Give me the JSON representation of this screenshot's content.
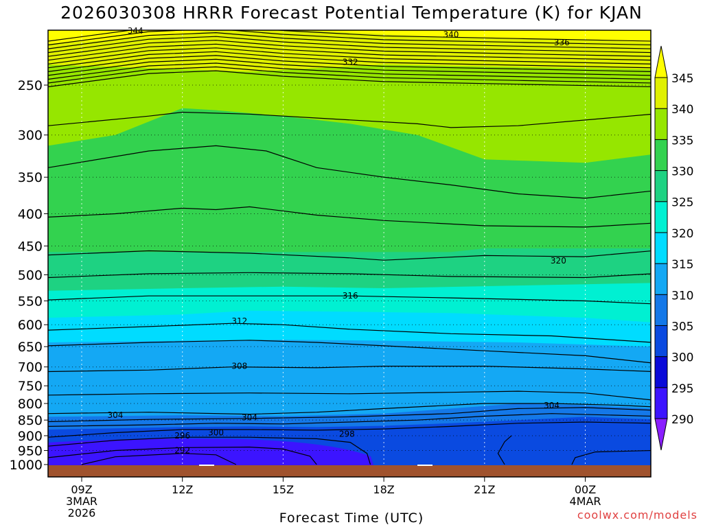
{
  "title": "2026030308 HRRR Forecast Potential Temperature (K) for KJAN",
  "xlabel": "Forecast Time (UTC)",
  "credit": "coolwx.com/models",
  "chart_data": {
    "type": "contour",
    "title": "2026030308 HRRR Forecast Potential Temperature (K) for KJAN",
    "xlabel": "Forecast Time (UTC)",
    "ylabel": "",
    "yaxis": {
      "levels": [
        250,
        300,
        350,
        400,
        450,
        500,
        550,
        600,
        650,
        700,
        750,
        800,
        850,
        900,
        950,
        1000
      ],
      "scale": "log",
      "inverted": true
    },
    "xaxis": {
      "ticks": [
        {
          "hour": 9,
          "label": "09Z",
          "sub": [
            "3MAR",
            "2026"
          ]
        },
        {
          "hour": 12,
          "label": "12Z",
          "sub": []
        },
        {
          "hour": 15,
          "label": "15Z",
          "sub": []
        },
        {
          "hour": 18,
          "label": "18Z",
          "sub": []
        },
        {
          "hour": 21,
          "label": "21Z",
          "sub": []
        },
        {
          "hour": 24,
          "label": "00Z",
          "sub": [
            "4MAR"
          ]
        }
      ]
    },
    "colorbar": {
      "levels": [
        290,
        295,
        300,
        305,
        310,
        315,
        320,
        325,
        330,
        335,
        340,
        345
      ],
      "colors": [
        "#8a1eff",
        "#3c14ff",
        "#0a0ad8",
        "#0a4ae0",
        "#1478e8",
        "#14a8f4",
        "#00dcff",
        "#00f0d2",
        "#1ed282",
        "#33d24f",
        "#96e600",
        "#e0f000",
        "#ffff00"
      ]
    },
    "contour_labels": [
      {
        "value": "344",
        "hour": 10.6,
        "p": 205
      },
      {
        "value": "340",
        "hour": 20.0,
        "p": 208
      },
      {
        "value": "336",
        "hour": 23.3,
        "p": 214
      },
      {
        "value": "332",
        "hour": 17.0,
        "p": 230
      },
      {
        "value": "320",
        "hour": 23.2,
        "p": 475
      },
      {
        "value": "316",
        "hour": 17.0,
        "p": 540
      },
      {
        "value": "312",
        "hour": 13.7,
        "p": 592
      },
      {
        "value": "308",
        "hour": 13.7,
        "p": 698
      },
      {
        "value": "304",
        "hour": 23.0,
        "p": 806
      },
      {
        "value": "304",
        "hour": 10.0,
        "p": 835
      },
      {
        "value": "304",
        "hour": 14.0,
        "p": 842
      },
      {
        "value": "300",
        "hour": 13.0,
        "p": 890
      },
      {
        "value": "298",
        "hour": 16.9,
        "p": 895
      },
      {
        "value": "296",
        "hour": 12.0,
        "p": 900
      },
      {
        "value": "292",
        "hour": 12.0,
        "p": 950
      }
    ]
  }
}
